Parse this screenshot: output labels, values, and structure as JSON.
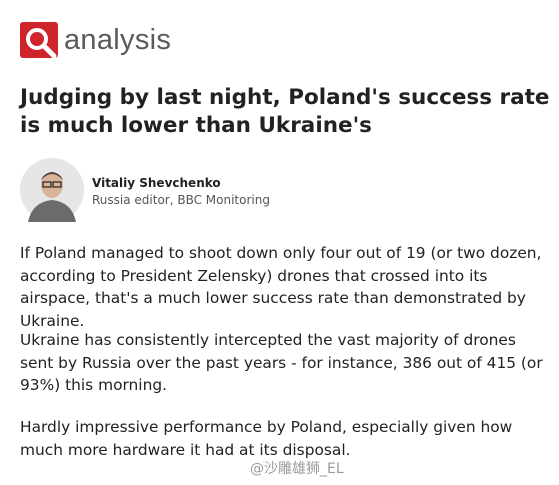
{
  "header": {
    "label": "analysis"
  },
  "title": "Judging by last night, Poland's success rate is much lower than Ukraine's",
  "author": {
    "name": "Vitaliy Shevchenko",
    "role": "Russia editor, BBC Monitoring"
  },
  "paragraphs": [
    "If Poland managed to shoot down only four out of 19 (or two dozen, according to President Zelensky) drones that crossed into its airspace, that's a much lower success rate than demonstrated by Ukraine.",
    "Ukraine has consistently intercepted the vast majority of drones sent by Russia over the past years - for instance, 386 out of 415 (or 93%) this morning.",
    "Hardly impressive performance by Poland, especially given how much more hardware it had at its disposal."
  ],
  "watermark": "@沙雕雄狮_EL"
}
